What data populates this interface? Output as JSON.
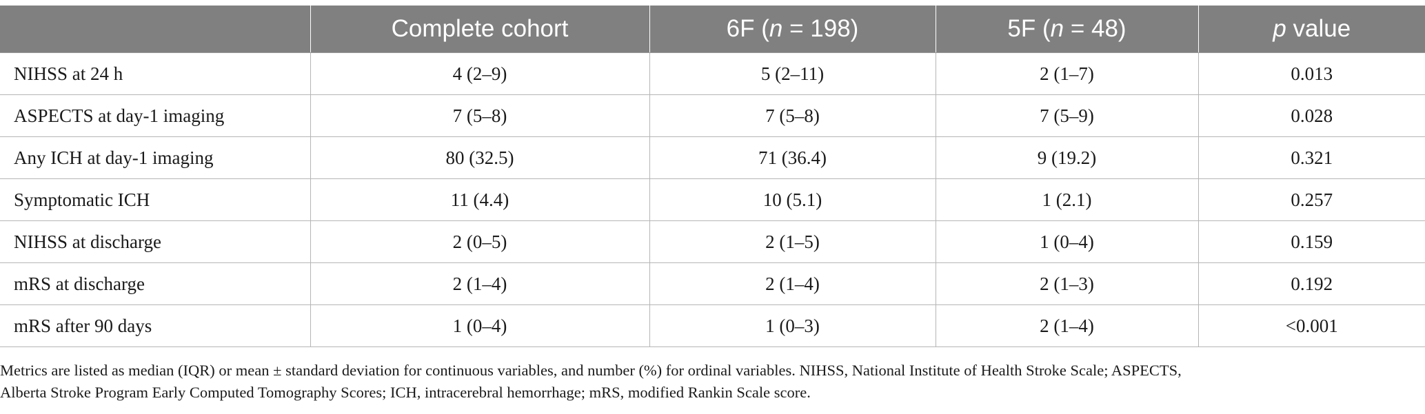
{
  "table": {
    "headers": [
      {
        "pre": "",
        "it": "",
        "post": ""
      },
      {
        "pre": "Complete cohort",
        "it": "",
        "post": ""
      },
      {
        "pre": "6F (",
        "it": "n",
        "post": " = 198)"
      },
      {
        "pre": "5F (",
        "it": "n",
        "post": " = 48)"
      },
      {
        "pre": "",
        "it": "p",
        "post": " value"
      }
    ],
    "rows": [
      [
        "NIHSS at 24 h",
        "4 (2–9)",
        "5 (2–11)",
        "2 (1–7)",
        "0.013"
      ],
      [
        "ASPECTS at day-1 imaging",
        "7 (5–8)",
        "7 (5–8)",
        "7 (5–9)",
        "0.028"
      ],
      [
        "Any ICH at day-1 imaging",
        "80 (32.5)",
        "71 (36.4)",
        "9 (19.2)",
        "0.321"
      ],
      [
        "Symptomatic ICH",
        "11 (4.4)",
        "10 (5.1)",
        "1 (2.1)",
        "0.257"
      ],
      [
        "NIHSS at discharge",
        "2 (0–5)",
        "2 (1–5)",
        "1 (0–4)",
        "0.159"
      ],
      [
        "mRS at discharge",
        "2 (1–4)",
        "2 (1–4)",
        "2 (1–3)",
        "0.192"
      ],
      [
        "mRS after 90 days",
        "1 (0–4)",
        "1 (0–3)",
        "2 (1–4)",
        "<0.001"
      ]
    ]
  },
  "footnote": {
    "line1": "Metrics are listed as median (IQR) or mean ± standard deviation for continuous variables, and number (%) for ordinal variables. NIHSS, National Institute of Health Stroke Scale; ASPECTS,",
    "line2": "Alberta Stroke Program Early Computed Tomography Scores; ICH, intracerebral hemorrhage; mRS, modified Rankin Scale score."
  },
  "colors": {
    "header_bg": "#808080",
    "header_text": "#ffffff",
    "grid_line": "#b5b5b5",
    "body_text": "#1a1a1a"
  }
}
